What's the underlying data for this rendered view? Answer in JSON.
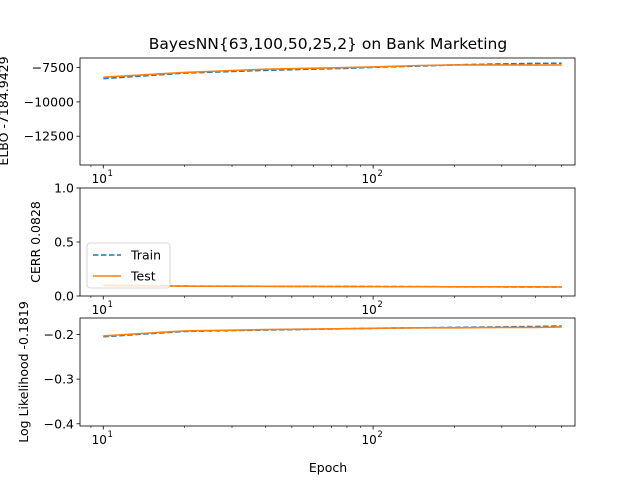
{
  "chart_data": [
    {
      "type": "line",
      "title": "BayesNN{63,100,50,25,2} on Bank Marketing",
      "xlabel": "",
      "ylabel": "ELBO -7184.9429",
      "xscale": "log",
      "xlim": [
        8.2,
        560
      ],
      "ylim": [
        -14600,
        -6800
      ],
      "yticks": [
        -7500,
        -10000,
        -12500
      ],
      "ytick_labels": [
        "−7500",
        "−10000",
        "−12500"
      ],
      "xtick_labels": [
        "10",
        "10"
      ],
      "xtick_exponents": [
        "1",
        "2"
      ],
      "series": [
        {
          "name": "Train",
          "color": "#1f77b4",
          "dash": true,
          "x": [
            10,
            20,
            40,
            80,
            100,
            150,
            200,
            300,
            400,
            500
          ],
          "y": [
            -8300,
            -7900,
            -7700,
            -7550,
            -7480,
            -7380,
            -7300,
            -7230,
            -7190,
            -7185
          ]
        },
        {
          "name": "Test",
          "color": "#ff7f0e",
          "dash": false,
          "x": [
            10,
            20,
            40,
            80,
            100,
            150,
            200,
            300,
            400,
            500
          ],
          "y": [
            -8200,
            -7850,
            -7620,
            -7500,
            -7450,
            -7350,
            -7300,
            -7300,
            -7320,
            -7310
          ]
        }
      ]
    },
    {
      "type": "line",
      "title": "",
      "xlabel": "",
      "ylabel": "CERR 0.0828",
      "xscale": "log",
      "xlim": [
        8.2,
        560
      ],
      "ylim": [
        0,
        1
      ],
      "yticks": [
        0,
        0.5,
        1
      ],
      "ytick_labels": [
        "0.0",
        "0.5",
        "1.0"
      ],
      "xtick_labels": [
        "10",
        "10"
      ],
      "xtick_exponents": [
        "1",
        "2"
      ],
      "legend": {
        "position": "center-left",
        "entries": [
          "Train",
          "Test"
        ]
      },
      "series": [
        {
          "name": "Train",
          "color": "#1f77b4",
          "dash": true,
          "x": [
            10,
            20,
            50,
            100,
            200,
            500
          ],
          "y": [
            0.1,
            0.092,
            0.09,
            0.088,
            0.085,
            0.083
          ]
        },
        {
          "name": "Test",
          "color": "#ff7f0e",
          "dash": false,
          "x": [
            10,
            20,
            50,
            100,
            200,
            500
          ],
          "y": [
            0.098,
            0.091,
            0.089,
            0.087,
            0.085,
            0.084
          ]
        }
      ]
    },
    {
      "type": "line",
      "title": "",
      "xlabel": "Epoch",
      "ylabel": "Log Likelihood -0.1819",
      "xscale": "log",
      "xlim": [
        8.2,
        560
      ],
      "ylim": [
        -0.405,
        -0.163
      ],
      "yticks": [
        -0.2,
        -0.3,
        -0.4
      ],
      "ytick_labels": [
        "−0.2",
        "−0.3",
        "−0.4"
      ],
      "xtick_labels": [
        "10",
        "10"
      ],
      "xtick_exponents": [
        "1",
        "2"
      ],
      "series": [
        {
          "name": "Train",
          "color": "#1f77b4",
          "dash": true,
          "x": [
            10,
            20,
            40,
            80,
            100,
            150,
            200,
            300,
            400,
            500
          ],
          "y": [
            -0.205,
            -0.193,
            -0.19,
            -0.187,
            -0.186,
            -0.185,
            -0.184,
            -0.183,
            -0.182,
            -0.181
          ]
        },
        {
          "name": "Test",
          "color": "#ff7f0e",
          "dash": false,
          "x": [
            10,
            20,
            40,
            80,
            100,
            150,
            200,
            300,
            400,
            500
          ],
          "y": [
            -0.203,
            -0.192,
            -0.189,
            -0.187,
            -0.186,
            -0.185,
            -0.185,
            -0.184,
            -0.184,
            -0.183
          ]
        }
      ]
    }
  ]
}
